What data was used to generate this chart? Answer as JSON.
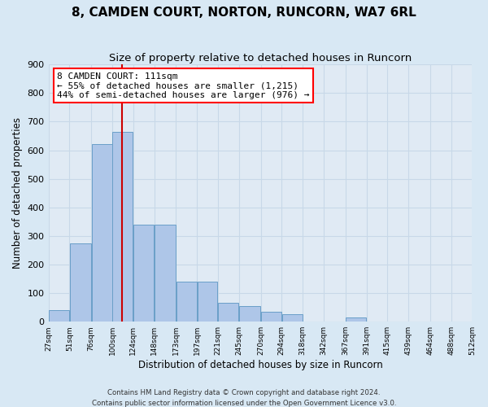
{
  "title": "8, CAMDEN COURT, NORTON, RUNCORN, WA7 6RL",
  "subtitle": "Size of property relative to detached houses in Runcorn",
  "xlabel": "Distribution of detached houses by size in Runcorn",
  "ylabel": "Number of detached properties",
  "footer_line1": "Contains HM Land Registry data © Crown copyright and database right 2024.",
  "footer_line2": "Contains public sector information licensed under the Open Government Licence v3.0.",
  "annotation_line1": "8 CAMDEN COURT: 111sqm",
  "annotation_line2": "← 55% of detached houses are smaller (1,215)",
  "annotation_line3": "44% of semi-detached houses are larger (976) →",
  "bar_left_edges": [
    27,
    51,
    76,
    100,
    124,
    148,
    173,
    197,
    221,
    245,
    270,
    294,
    318,
    342,
    367,
    391,
    415,
    439,
    464,
    488
  ],
  "bar_widths": [
    24,
    25,
    24,
    24,
    24,
    25,
    24,
    24,
    24,
    25,
    24,
    24,
    24,
    25,
    24,
    24,
    24,
    25,
    24,
    24
  ],
  "bar_heights": [
    40,
    275,
    622,
    665,
    340,
    340,
    140,
    140,
    65,
    55,
    35,
    25,
    0,
    0,
    15,
    0,
    0,
    0,
    0,
    0
  ],
  "bar_color": "#aec6e8",
  "bar_edge_color": "#6a9fc8",
  "vline_x": 111,
  "vline_color": "#cc0000",
  "ylim": [
    0,
    900
  ],
  "yticks": [
    0,
    100,
    200,
    300,
    400,
    500,
    600,
    700,
    800,
    900
  ],
  "tick_labels": [
    "27sqm",
    "51sqm",
    "76sqm",
    "100sqm",
    "124sqm",
    "148sqm",
    "173sqm",
    "197sqm",
    "221sqm",
    "245sqm",
    "270sqm",
    "294sqm",
    "318sqm",
    "342sqm",
    "367sqm",
    "391sqm",
    "415sqm",
    "439sqm",
    "464sqm",
    "488sqm",
    "512sqm"
  ],
  "grid_color": "#c8d8e8",
  "background_color": "#d8e8f4",
  "plot_bg_color": "#e0eaf4",
  "title_fontsize": 11,
  "subtitle_fontsize": 9.5,
  "annotation_fontsize": 8
}
